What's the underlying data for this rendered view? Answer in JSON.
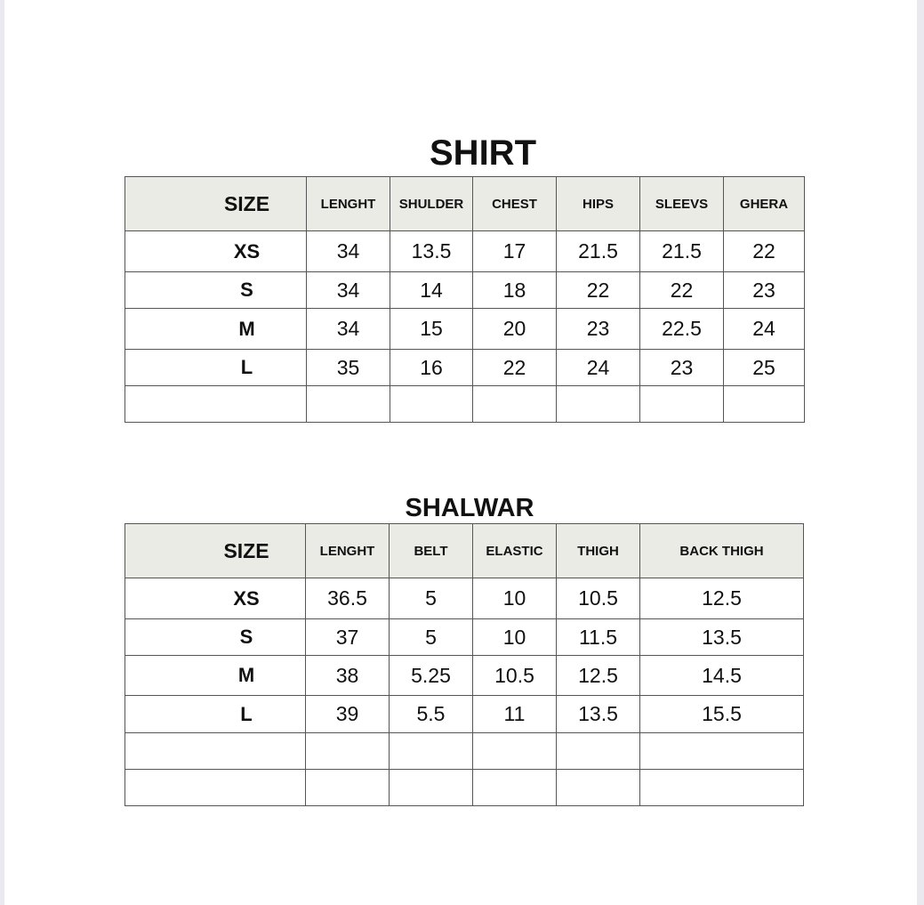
{
  "shirt": {
    "title": "SHIRT",
    "headers": [
      "SIZE",
      "LENGHT",
      "SHULDER",
      "CHEST",
      "HIPS",
      "SLEEVS",
      "GHERA"
    ],
    "rows": [
      [
        "XS",
        "34",
        "13.5",
        "17",
        "21.5",
        "21.5",
        "22"
      ],
      [
        "S",
        "34",
        "14",
        "18",
        "22",
        "22",
        "23"
      ],
      [
        "M",
        "34",
        "15",
        "20",
        "23",
        "22.5",
        "24"
      ],
      [
        "L",
        "35",
        "16",
        "22",
        "24",
        "23",
        "25"
      ]
    ]
  },
  "shalwar": {
    "title": "SHALWAR",
    "headers": [
      "SIZE",
      "LENGHT",
      "BELT",
      "ELASTIC",
      "THIGH",
      "BACK THIGH"
    ],
    "rows": [
      [
        "XS",
        "36.5",
        "5",
        "10",
        "10.5",
        "12.5"
      ],
      [
        "S",
        "37",
        "5",
        "10",
        "11.5",
        "13.5"
      ],
      [
        "M",
        "38",
        "5.25",
        "10.5",
        "12.5",
        "14.5"
      ],
      [
        "L",
        "39",
        "5.5",
        "11",
        "13.5",
        "15.5"
      ]
    ]
  }
}
